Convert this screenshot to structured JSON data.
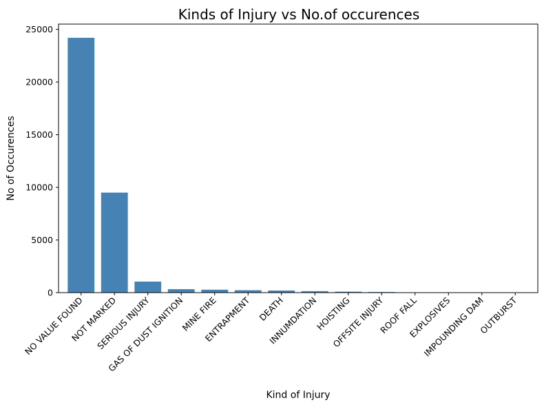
{
  "chart_data": {
    "type": "bar",
    "title": "Kinds of Injury vs No.of occurences",
    "xlabel": "Kind of Injury",
    "ylabel": "No of Occurences",
    "categories": [
      "NO VALUE FOUND",
      "NOT MARKED",
      "SERIOUS INJURY",
      "GAS OF DUST IGNITION",
      "MINE FIRE",
      "ENTRAPMENT",
      "DEATH",
      "INNUMDATION",
      "HOISTING",
      "OFFSITE INJURY",
      "ROOF FALL",
      "EXPLOSIVES",
      "IMPOUNDING DAM",
      "OUTBURST"
    ],
    "values": [
      24200,
      9500,
      1050,
      330,
      280,
      230,
      200,
      140,
      90,
      60,
      15,
      10,
      5,
      3
    ],
    "ylim": [
      0,
      25500
    ],
    "yticks": [
      0,
      5000,
      10000,
      15000,
      20000,
      25000
    ],
    "bar_color": "#4682b4",
    "grid": false,
    "legend": "none"
  }
}
